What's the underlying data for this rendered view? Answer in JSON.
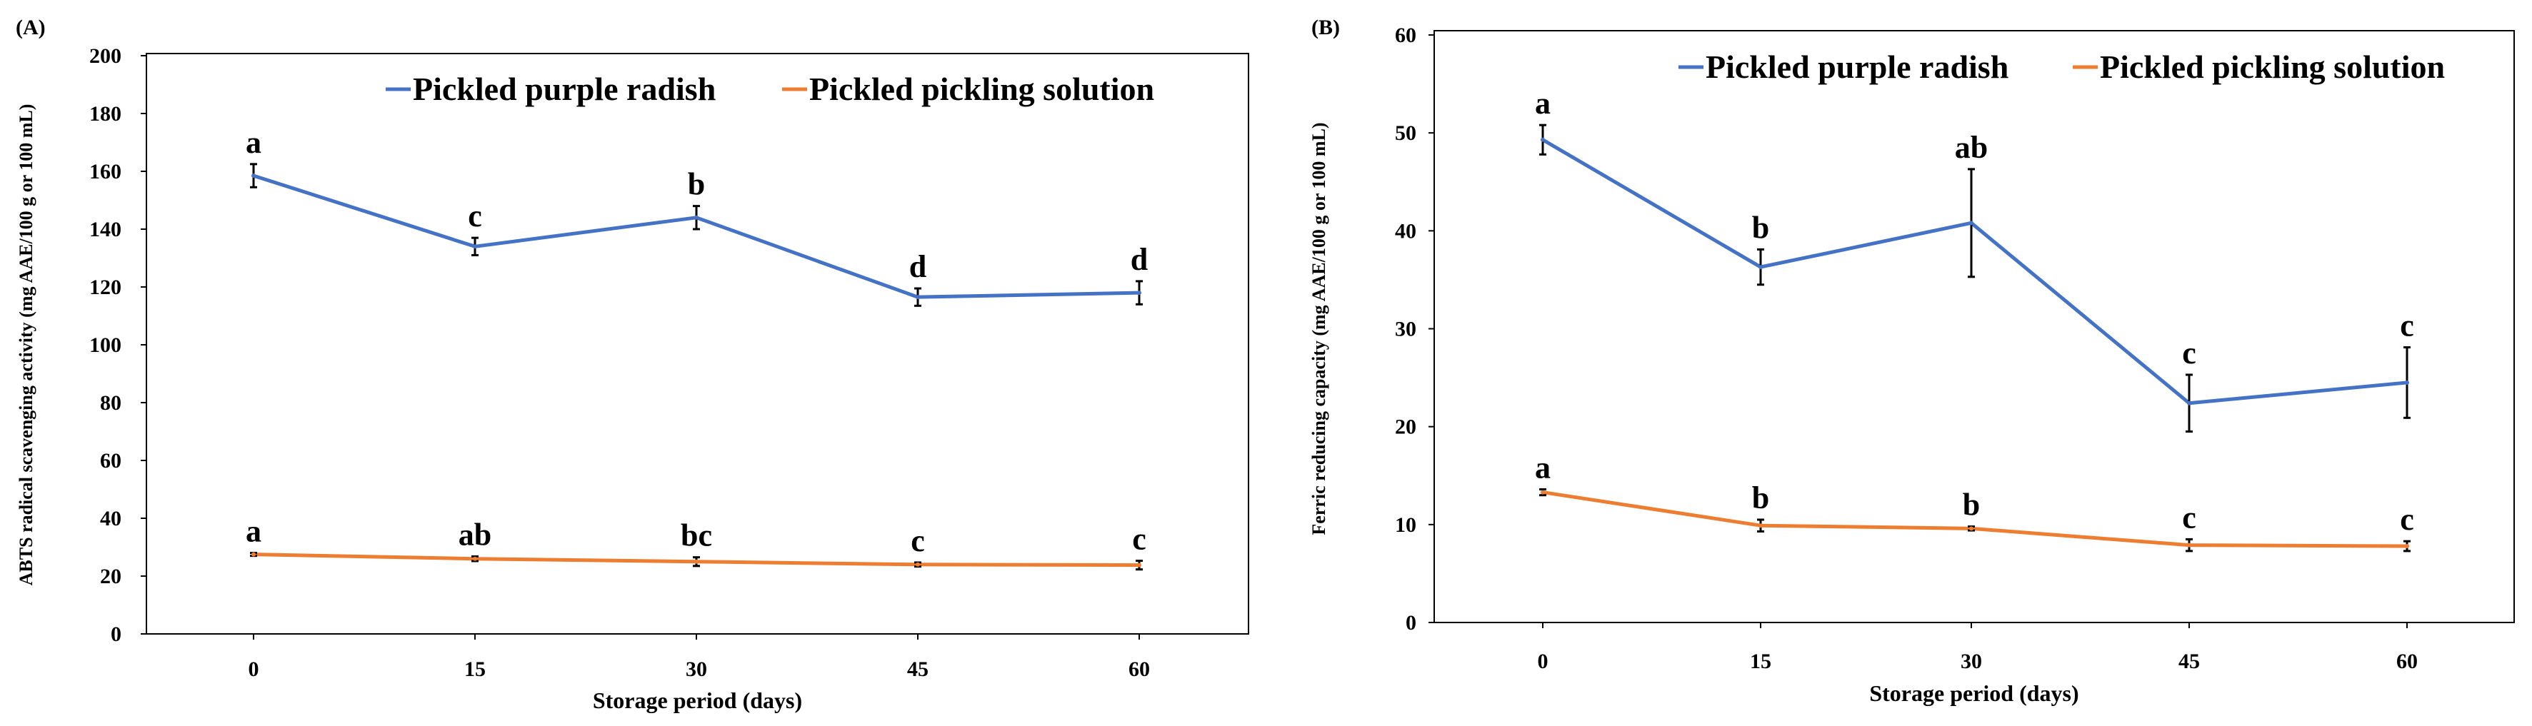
{
  "chart_data": [
    {
      "panel": "(A)",
      "type": "line",
      "xlabel": "Storage period (days)",
      "ylabel": "ABTS radical scavenging activity (mg AAE/100 g or 100 mL)",
      "categories": [
        "0",
        "15",
        "30",
        "45",
        "60"
      ],
      "ylim": [
        0,
        200
      ],
      "yticks": [
        "0",
        "20",
        "40",
        "60",
        "80",
        "100",
        "120",
        "140",
        "160",
        "180",
        "200"
      ],
      "legend_position": "top-right",
      "grid": false,
      "series": [
        {
          "name": "Pickled purple radish",
          "color": "#4472C4",
          "values": [
            158.5,
            134,
            144,
            116.5,
            118
          ],
          "errors": [
            4,
            3,
            4,
            3,
            4
          ],
          "labels": [
            "a",
            "c",
            "b",
            "d",
            "d"
          ]
        },
        {
          "name": "Pickled pickling solution",
          "color": "#ED7D31",
          "values": [
            27.5,
            26,
            25,
            24,
            23.8
          ],
          "errors": [
            0.5,
            0.8,
            1.5,
            0.7,
            1.5
          ],
          "labels": [
            "a",
            "ab",
            "bc",
            "c",
            "c"
          ]
        }
      ]
    },
    {
      "panel": "(B)",
      "type": "line",
      "xlabel": "Storage period (days)",
      "ylabel": "Ferric reducing capacity (mg AAE/100 g or 100 mL)",
      "categories": [
        "0",
        "15",
        "30",
        "45",
        "60"
      ],
      "ylim": [
        0,
        60
      ],
      "yticks": [
        "0",
        "10",
        "20",
        "30",
        "40",
        "50",
        "60"
      ],
      "legend_position": "top-right",
      "grid": false,
      "series": [
        {
          "name": "Pickled purple radish",
          "color": "#4472C4",
          "values": [
            49.3,
            36.3,
            40.8,
            22.4,
            24.5
          ],
          "errors": [
            1.5,
            1.8,
            5.5,
            2.9,
            3.6
          ],
          "labels": [
            "a",
            "b",
            "ab",
            "c",
            "c"
          ]
        },
        {
          "name": "Pickled pickling solution",
          "color": "#ED7D31",
          "values": [
            13.3,
            9.9,
            9.6,
            7.9,
            7.8
          ],
          "errors": [
            0.3,
            0.6,
            0.2,
            0.6,
            0.5
          ],
          "labels": [
            "a",
            "b",
            "b",
            "c",
            "c"
          ]
        }
      ]
    }
  ]
}
